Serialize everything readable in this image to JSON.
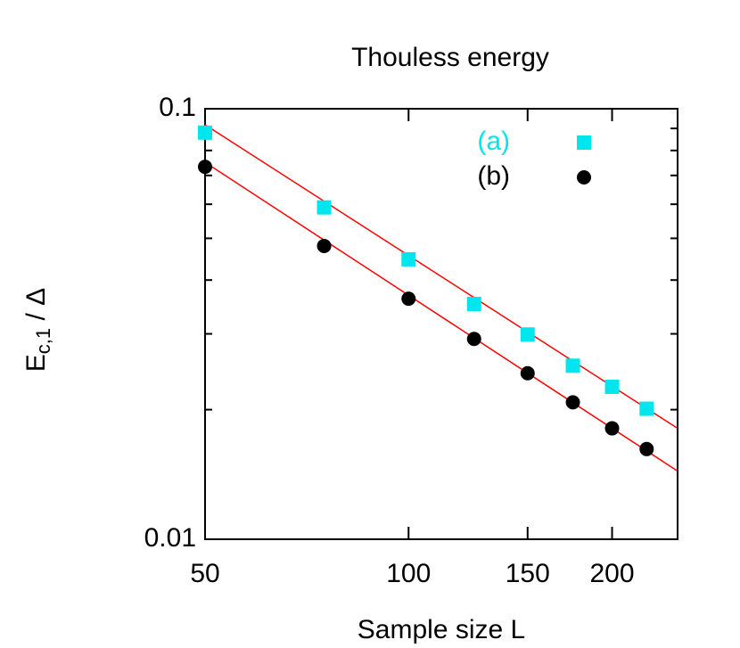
{
  "chart_data": {
    "type": "scatter",
    "title": "Thouless energy",
    "xlabel": "Sample size L",
    "ylabel": "E",
    "ylabel_sub": "c,1",
    "ylabel_rest": " / Δ",
    "xlog": true,
    "ylog": true,
    "xlim": [
      50,
      250
    ],
    "ylim": [
      0.01,
      0.1
    ],
    "xticks": [
      50,
      100,
      150,
      200
    ],
    "yticks": [
      0.01,
      0.1
    ],
    "yminorticks": [
      0.02,
      0.03,
      0.04,
      0.05,
      0.06,
      0.07,
      0.08,
      0.09
    ],
    "legend": "top-right",
    "series": [
      {
        "name": "(a)",
        "color": "#00e5ee",
        "marker": "square",
        "x": [
          50,
          75,
          100,
          125,
          150,
          175,
          200,
          225
        ],
        "values": [
          0.088,
          0.059,
          0.0447,
          0.0352,
          0.0299,
          0.0253,
          0.0226,
          0.0201
        ]
      },
      {
        "name": "(b)",
        "color": "#000000",
        "marker": "circle",
        "x": [
          50,
          75,
          100,
          125,
          150,
          175,
          200,
          225
        ],
        "values": [
          0.0733,
          0.048,
          0.0362,
          0.0292,
          0.0243,
          0.0208,
          0.0181,
          0.0162
        ]
      }
    ],
    "fits": [
      {
        "color": "#ff0000",
        "x": [
          50,
          250
        ],
        "values": [
          0.0918,
          0.0181
        ]
      },
      {
        "color": "#ff0000",
        "x": [
          50,
          250
        ],
        "values": [
          0.0751,
          0.0144
        ]
      }
    ]
  }
}
